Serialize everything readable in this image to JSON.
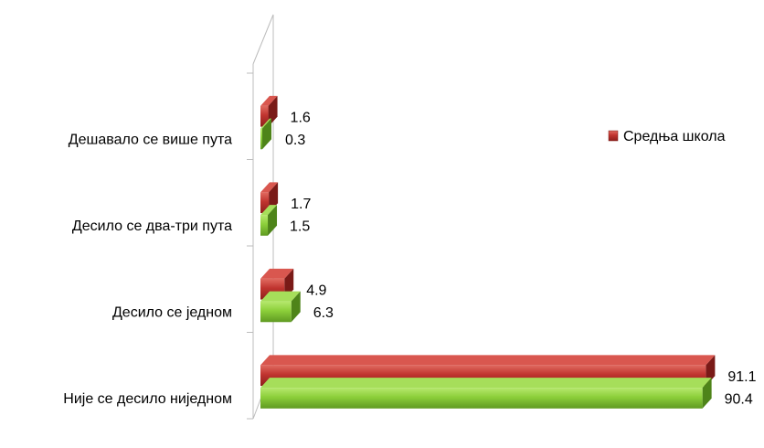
{
  "chart_data": {
    "type": "bar",
    "orientation": "horizontal",
    "style": "3d",
    "categories": [
      "Није се десило ниједном",
      "Десило се једном",
      "Десило се два-три пута",
      "Дешавало се више пута"
    ],
    "series": [
      {
        "name": "Средња школа",
        "values": [
          91.1,
          4.9,
          1.7,
          1.6
        ],
        "color": "#c0342f"
      },
      {
        "name": "",
        "values": [
          90.4,
          6.3,
          1.5,
          0.3
        ],
        "color": "#8ccf3a"
      }
    ],
    "title": "",
    "xlabel": "",
    "ylabel": "",
    "xlim": [
      0,
      100
    ],
    "grid": false,
    "legend": {
      "position": "right",
      "entries": [
        "Средња школа"
      ]
    }
  }
}
